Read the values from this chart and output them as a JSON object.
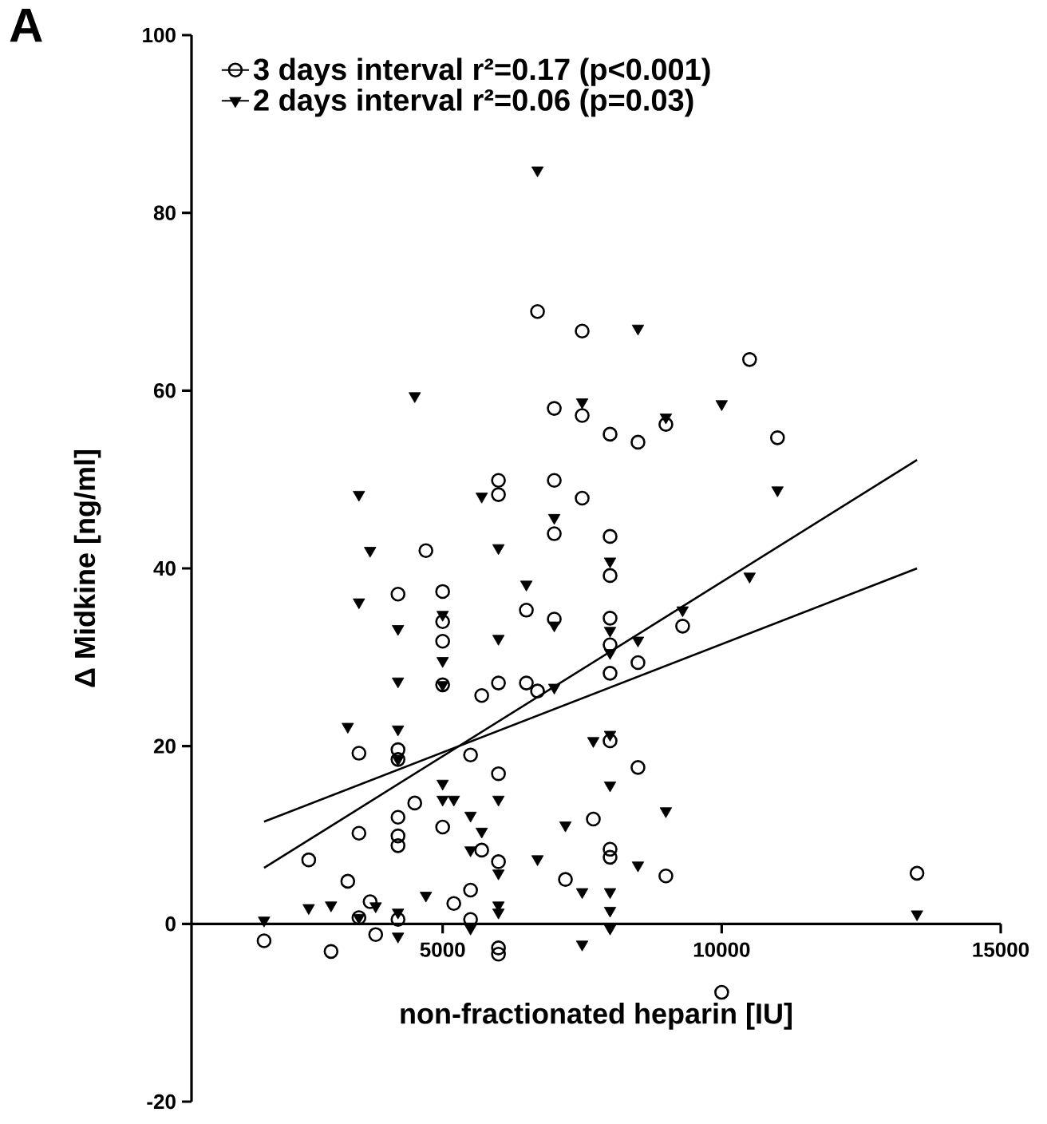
{
  "chart_data": {
    "type": "scatter",
    "xlabel": "non-fractionated heparin [IU]",
    "ylabel": "Δ Midkine [ng/ml]",
    "annotations": [
      "A"
    ],
    "xlim": [
      500,
      15000
    ],
    "xticks": [
      5000,
      10000,
      15000
    ],
    "ylim": [
      -20,
      100
    ],
    "yticks": [
      -20,
      0,
      20,
      40,
      60,
      80,
      100
    ],
    "grid": false,
    "legend": "top left",
    "series": [
      {
        "name": "3 days interval r²=0.17  (p<0.001)",
        "marker": "circle",
        "color": "#000000",
        "x": [
          1800,
          2600,
          3000,
          3300,
          3500,
          3500,
          3500,
          3700,
          3800,
          4200,
          4200,
          4200,
          4200,
          4200,
          4200,
          4200,
          4500,
          4700,
          5000,
          5000,
          5000,
          5000,
          5000,
          5200,
          5500,
          5500,
          5500,
          5700,
          5700,
          6000,
          6000,
          6000,
          6000,
          6000,
          6000,
          6000,
          6500,
          6500,
          6700,
          6700,
          7000,
          7000,
          7000,
          7000,
          7200,
          7500,
          7500,
          7500,
          7700,
          8000,
          8000,
          8000,
          8000,
          8000,
          8000,
          8000,
          8000,
          8000,
          8500,
          8500,
          8500,
          9000,
          9000,
          9300,
          10000,
          10500,
          11000,
          13500
        ],
        "values": [
          -1.9,
          7.2,
          -3.1,
          4.8,
          10.2,
          19.2,
          0.7,
          2.5,
          -1.2,
          37.1,
          19.6,
          18.5,
          12.0,
          9.9,
          8.8,
          0.5,
          13.6,
          42.0,
          37.4,
          34.0,
          31.8,
          26.9,
          10.9,
          2.3,
          19.0,
          3.8,
          0.5,
          25.7,
          8.3,
          49.9,
          48.3,
          27.1,
          16.9,
          7.0,
          -2.7,
          -3.4,
          35.3,
          27.1,
          68.9,
          26.2,
          58.0,
          49.9,
          43.9,
          34.3,
          5.0,
          66.7,
          57.2,
          47.9,
          11.8,
          55.1,
          43.6,
          39.2,
          34.4,
          31.4,
          28.2,
          20.6,
          8.4,
          7.5,
          54.2,
          29.4,
          17.6,
          56.2,
          5.4,
          33.5,
          -7.7,
          63.5,
          54.7,
          5.7
        ]
      },
      {
        "name": "2 days interval r²=0.06  (p=0.03)",
        "marker": "triangle",
        "color": "#000000",
        "x": [
          1800,
          2600,
          3000,
          3300,
          3500,
          3500,
          3500,
          3700,
          3800,
          4200,
          4200,
          4200,
          4200,
          4200,
          4200,
          4500,
          4700,
          5000,
          5000,
          5000,
          5000,
          5000,
          5200,
          5500,
          5500,
          5500,
          5700,
          5700,
          6000,
          6000,
          6000,
          6000,
          6000,
          6000,
          6500,
          6700,
          6700,
          7000,
          7000,
          7000,
          7200,
          7500,
          7500,
          7500,
          7700,
          8000,
          8000,
          8000,
          8000,
          8000,
          8000,
          8000,
          8000,
          8500,
          8500,
          8500,
          9000,
          9000,
          9300,
          10000,
          10500,
          11000,
          13500
        ],
        "values": [
          0.4,
          1.8,
          2.1,
          22.2,
          48.3,
          36.2,
          0.7,
          42.0,
          2.0,
          33.2,
          27.3,
          21.9,
          18.5,
          1.3,
          -1.4,
          59.4,
          3.2,
          34.8,
          29.6,
          26.9,
          15.8,
          14.0,
          14.0,
          12.2,
          8.3,
          -0.5,
          48.1,
          10.4,
          42.3,
          32.1,
          14.0,
          5.7,
          2.1,
          1.3,
          38.2,
          84.8,
          7.3,
          45.7,
          33.6,
          26.6,
          11.1,
          58.7,
          3.6,
          -2.3,
          20.6,
          40.8,
          33.0,
          30.5,
          21.3,
          15.6,
          3.6,
          1.5,
          -0.5,
          67.0,
          31.9,
          6.6,
          57.0,
          12.7,
          35.3,
          58.5,
          39.1,
          48.8,
          1.1
        ]
      },
      {
        "type": "line",
        "color": "#000000",
        "x": [
          1800,
          13500
        ],
        "values": [
          11.5,
          40.0
        ]
      },
      {
        "type": "line",
        "color": "#000000",
        "x": [
          1800,
          13500
        ],
        "values": [
          6.3,
          52.2
        ]
      }
    ]
  }
}
